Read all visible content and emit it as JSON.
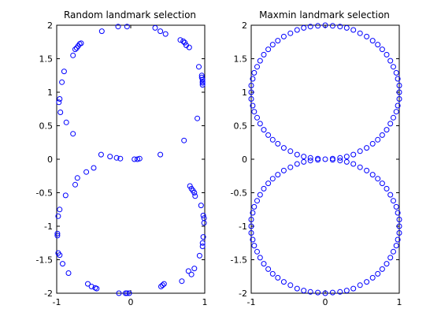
{
  "chart_data": [
    {
      "type": "scatter",
      "title": "Random landmark selection",
      "xlabel": "",
      "ylabel": "",
      "xlim": [
        -1,
        1
      ],
      "ylim": [
        -2,
        2
      ],
      "xticks": [
        -1,
        0,
        1
      ],
      "xtick_labels": [
        "-1",
        "0",
        "1"
      ],
      "yticks": [
        2,
        1.5,
        1,
        0.5,
        0,
        -0.5,
        -1,
        -1.5,
        -2
      ],
      "ytick_labels": [
        "2",
        "1.5",
        "1",
        "0.5",
        "0",
        "-0.5",
        "-1",
        "-1.5",
        "-2"
      ],
      "grid": false,
      "marker": "circle",
      "marker_color": "#0000ff",
      "x": [
        -0.17,
        -0.05,
        0.33,
        -0.39,
        0.4,
        0.47,
        0.67,
        0.71,
        0.73,
        0.75,
        0.79,
        0.92,
        0.96,
        0.96,
        0.97,
        0.97,
        0.97,
        0.97,
        0.9,
        0.72,
        -0.67,
        -0.69,
        -0.71,
        -0.73,
        -0.75,
        -0.78,
        -0.9,
        -0.93,
        -0.96,
        -0.97,
        -0.95,
        -0.87,
        -0.78,
        -0.4,
        -0.28,
        -0.19,
        -0.14,
        0.05,
        0.09,
        0.12,
        0.4,
        -0.5,
        -0.6,
        -0.72,
        -0.75,
        -0.88,
        -0.96,
        -0.98,
        -0.99,
        -0.99,
        -0.98,
        -0.96,
        -0.92,
        -0.84,
        0.8,
        0.82,
        0.84,
        0.86,
        0.87,
        0.95,
        0.98,
        0.99,
        0.99,
        0.98,
        0.97,
        0.97,
        0.93,
        0.86,
        0.82,
        -0.58,
        -0.53,
        -0.48,
        -0.46,
        -0.16,
        -0.07,
        -0.05,
        -0.02,
        0.41,
        0.43,
        0.45,
        0.69,
        0.78
      ],
      "y": [
        1.98,
        1.98,
        1.96,
        1.91,
        1.91,
        1.87,
        1.78,
        1.76,
        1.74,
        1.7,
        1.67,
        1.38,
        1.25,
        1.22,
        1.19,
        1.16,
        1.14,
        1.11,
        0.61,
        0.28,
        1.73,
        1.72,
        1.69,
        1.66,
        1.64,
        1.55,
        1.31,
        1.15,
        0.9,
        0.85,
        0.7,
        0.55,
        0.38,
        0.07,
        0.04,
        0.02,
        0.01,
        0.0,
        0.0,
        0.01,
        0.07,
        -0.13,
        -0.19,
        -0.28,
        -0.38,
        -0.54,
        -0.75,
        -0.85,
        -1.11,
        -1.14,
        -1.4,
        -1.43,
        -1.56,
        -1.7,
        -0.4,
        -0.44,
        -0.47,
        -0.5,
        -0.55,
        -0.69,
        -0.84,
        -0.88,
        -0.95,
        -1.16,
        -1.25,
        -1.3,
        -1.44,
        -1.63,
        -1.72,
        -1.86,
        -1.9,
        -1.92,
        -1.93,
        -2.0,
        -2.0,
        -2.0,
        -2.0,
        -1.9,
        -1.88,
        -1.86,
        -1.82,
        -1.67
      ]
    },
    {
      "type": "scatter",
      "title": "Maxmin landmark selection",
      "xlabel": "",
      "ylabel": "",
      "xlim": [
        -1,
        1
      ],
      "ylim": [
        -2,
        2
      ],
      "xticks": [
        -1,
        0,
        1
      ],
      "xtick_labels": [
        "-1",
        "0",
        "1"
      ],
      "yticks": [
        2,
        1.5,
        1,
        0.5,
        0,
        -0.5,
        -1,
        -1.5,
        -2
      ],
      "ytick_labels": [
        "2",
        "1.5",
        "1",
        "0.5",
        "0",
        "-0.5",
        "-1",
        "-1.5",
        "-2"
      ],
      "grid": false,
      "marker": "circle",
      "marker_color": "#0000ff",
      "x": [
        0.0,
        0.1,
        0.2,
        0.29,
        0.38,
        0.47,
        0.56,
        0.64,
        0.71,
        0.77,
        0.83,
        0.88,
        0.92,
        0.96,
        0.98,
        1.0,
        1.0,
        1.0,
        0.98,
        0.96,
        0.92,
        0.88,
        0.83,
        0.77,
        0.71,
        0.64,
        0.56,
        0.47,
        0.38,
        0.29,
        0.2,
        0.1,
        0.0,
        -0.1,
        -0.2,
        -0.29,
        -0.38,
        -0.47,
        -0.56,
        -0.64,
        -0.71,
        -0.77,
        -0.83,
        -0.88,
        -0.92,
        -0.96,
        -0.98,
        -1.0,
        -1.0,
        -1.0,
        -0.98,
        -0.96,
        -0.92,
        -0.88,
        -0.83,
        -0.77,
        -0.71,
        -0.64,
        -0.56,
        -0.47,
        -0.38,
        -0.29,
        -0.2,
        -0.1,
        0.1,
        0.2,
        0.29,
        0.38,
        0.47,
        0.56,
        0.64,
        0.71,
        0.77,
        0.83,
        0.88,
        0.92,
        0.96,
        0.98,
        1.0,
        1.0,
        1.0,
        0.98,
        0.96,
        0.92,
        0.88,
        0.83,
        0.77,
        0.71,
        0.64,
        0.56,
        0.47,
        0.38,
        0.29,
        0.2,
        0.1,
        0.0,
        -0.1,
        -0.2,
        -0.29,
        -0.38,
        -0.47,
        -0.56,
        -0.64,
        -0.71,
        -0.77,
        -0.83,
        -0.88,
        -0.92,
        -0.96,
        -0.98,
        -1.0,
        -1.0,
        -1.0,
        -0.98,
        -0.96,
        -0.92,
        -0.88,
        -0.83,
        -0.77,
        -0.71,
        -0.64,
        -0.56,
        -0.47,
        -0.38,
        -0.29,
        -0.2,
        -0.1
      ],
      "y": [
        2.0,
        1.99,
        1.98,
        1.96,
        1.93,
        1.88,
        1.83,
        1.77,
        1.71,
        1.64,
        1.56,
        1.47,
        1.38,
        1.29,
        1.2,
        1.1,
        1.0,
        0.9,
        0.8,
        0.71,
        0.62,
        0.53,
        0.44,
        0.36,
        0.29,
        0.23,
        0.17,
        0.12,
        0.07,
        0.04,
        0.02,
        0.01,
        0.0,
        0.01,
        0.02,
        0.04,
        0.07,
        0.12,
        0.17,
        0.23,
        0.29,
        0.36,
        0.44,
        0.53,
        0.62,
        0.71,
        0.8,
        0.9,
        1.0,
        1.1,
        1.2,
        1.29,
        1.38,
        1.47,
        1.56,
        1.64,
        1.71,
        1.77,
        1.83,
        1.88,
        1.93,
        1.96,
        1.98,
        1.99,
        -0.01,
        -0.02,
        -0.04,
        -0.07,
        -0.12,
        -0.17,
        -0.23,
        -0.29,
        -0.36,
        -0.44,
        -0.53,
        -0.62,
        -0.71,
        -0.8,
        -0.9,
        -1.0,
        -1.1,
        -1.2,
        -1.29,
        -1.38,
        -1.47,
        -1.56,
        -1.64,
        -1.71,
        -1.77,
        -1.83,
        -1.88,
        -1.93,
        -1.96,
        -1.98,
        -1.99,
        -2.0,
        -1.99,
        -1.98,
        -1.96,
        -1.93,
        -1.88,
        -1.83,
        -1.77,
        -1.71,
        -1.64,
        -1.56,
        -1.47,
        -1.38,
        -1.29,
        -1.2,
        -1.1,
        -1.0,
        -0.9,
        -0.8,
        -0.71,
        -0.62,
        -0.53,
        -0.44,
        -0.36,
        -0.29,
        -0.23,
        -0.17,
        -0.12,
        -0.07,
        -0.04,
        -0.02,
        -0.01
      ]
    }
  ]
}
